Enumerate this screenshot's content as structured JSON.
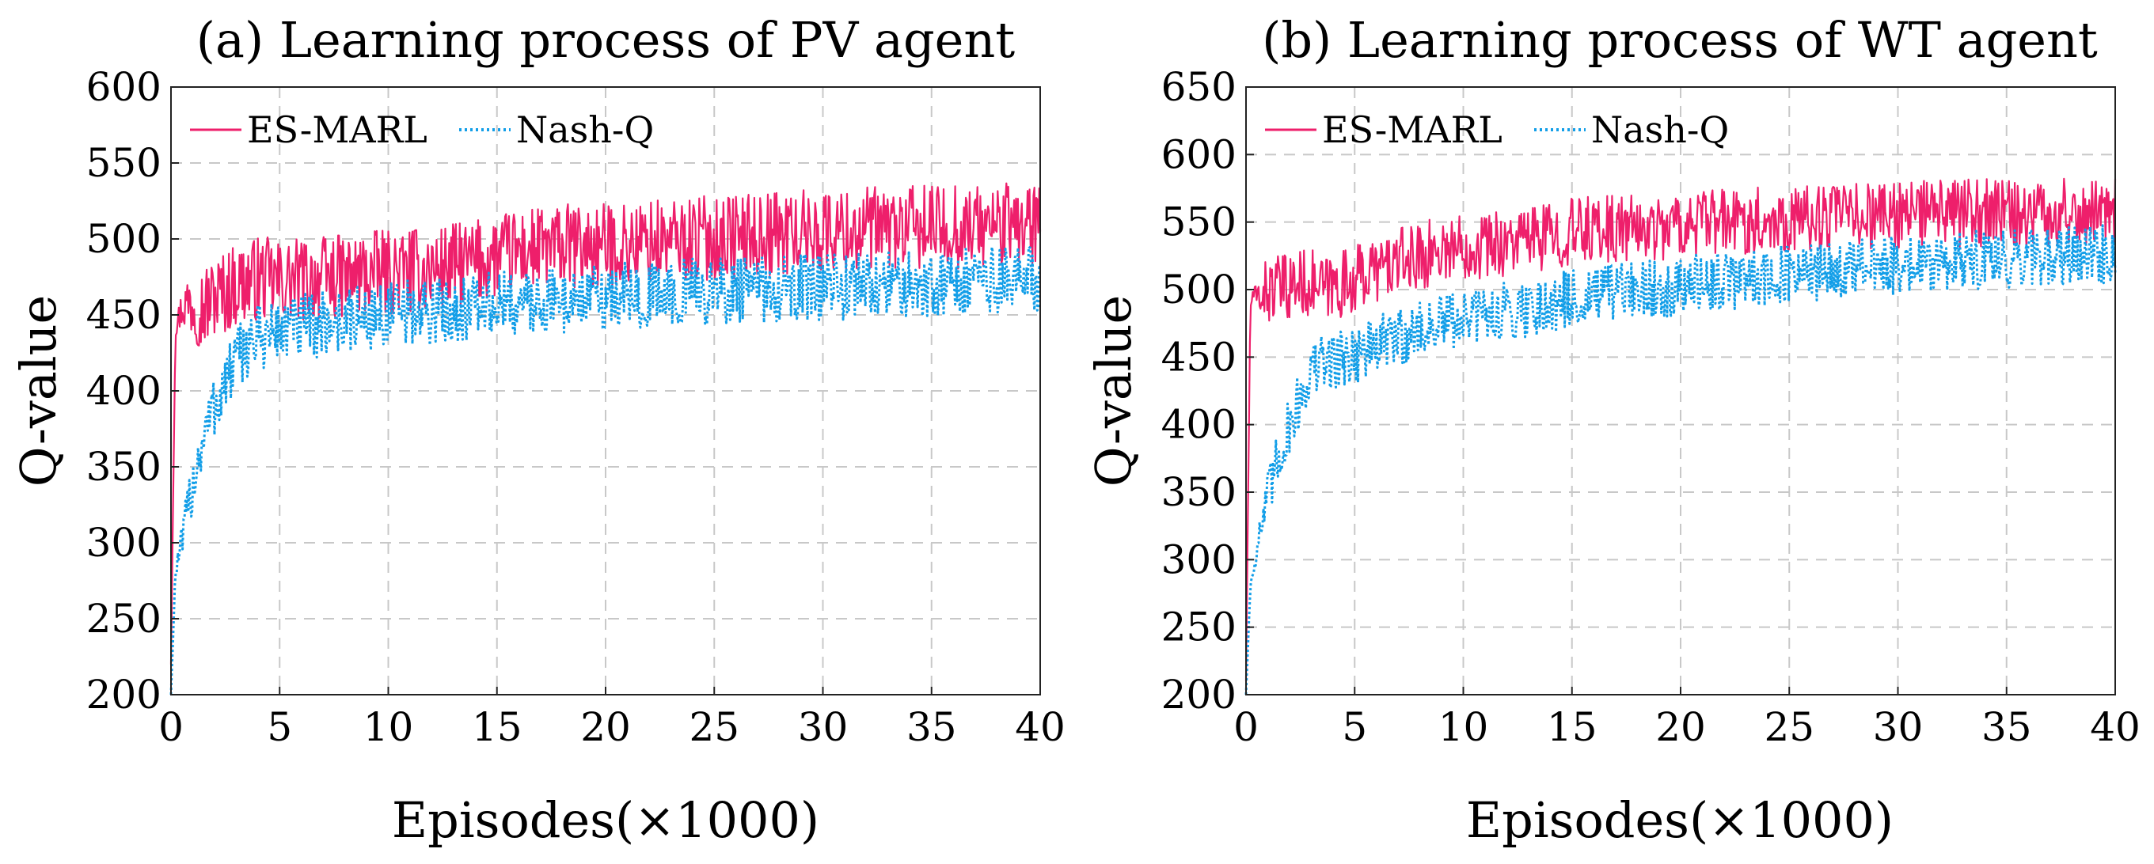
{
  "figure": {
    "panels": [
      {
        "title": "(a) Learning process of PV agent",
        "xlabel": "Episodes(×1000)",
        "ylabel": "Q-value"
      },
      {
        "title": "(b) Learning process of WT agent",
        "xlabel": "Episodes(×1000)",
        "ylabel": "Q-value"
      }
    ],
    "legend": [
      "ES-MARL",
      "Nash-Q"
    ]
  },
  "colors": {
    "es_marl": "#ee1f6b",
    "nash_q": "#129ee8"
  },
  "chart_data": [
    {
      "type": "line",
      "title": "(a) Learning process of PV agent",
      "xlabel": "Episodes(×1000)",
      "ylabel": "Q-value",
      "xlim": [
        0,
        40
      ],
      "ylim": [
        200,
        600
      ],
      "xticks": [
        0,
        5,
        10,
        15,
        20,
        25,
        30,
        35,
        40
      ],
      "yticks": [
        200,
        250,
        300,
        350,
        400,
        450,
        500,
        550,
        600
      ],
      "grid": true,
      "legend_position": "top-left",
      "x": [
        0,
        0.2,
        0.5,
        1,
        1.5,
        2,
        2.5,
        3,
        3.5,
        4,
        5,
        6,
        7,
        8,
        9,
        10,
        12,
        14,
        16,
        18,
        20,
        22,
        24,
        26,
        28,
        30,
        32,
        34,
        36,
        38,
        40
      ],
      "series": [
        {
          "name": "ES-MARL",
          "line": "solid",
          "values": [
            220,
            440,
            455,
            460,
            455,
            462,
            465,
            470,
            472,
            474,
            472,
            473,
            474,
            475,
            477,
            478,
            480,
            485,
            492,
            495,
            495,
            498,
            500,
            502,
            504,
            505,
            506,
            507,
            508,
            509,
            510
          ],
          "noise": 28
        },
        {
          "name": "Nash-Q",
          "line": "dotted",
          "values": [
            200,
            280,
            300,
            340,
            370,
            390,
            405,
            420,
            430,
            435,
            440,
            442,
            444,
            446,
            448,
            450,
            452,
            455,
            458,
            460,
            462,
            463,
            465,
            466,
            467,
            468,
            469,
            470,
            472,
            473,
            475
          ],
          "noise": 22
        }
      ]
    },
    {
      "type": "line",
      "title": "(b) Learning process of WT agent",
      "xlabel": "Episodes(×1000)",
      "ylabel": "Q-value",
      "xlim": [
        0,
        40
      ],
      "ylim": [
        200,
        650
      ],
      "xticks": [
        0,
        5,
        10,
        15,
        20,
        25,
        30,
        35,
        40
      ],
      "yticks": [
        200,
        250,
        300,
        350,
        400,
        450,
        500,
        550,
        600,
        650
      ],
      "grid": true,
      "legend_position": "top-left",
      "x": [
        0,
        0.2,
        0.5,
        1,
        1.5,
        2,
        2.5,
        3,
        3.5,
        4,
        5,
        6,
        7,
        8,
        9,
        10,
        12,
        14,
        16,
        18,
        20,
        22,
        24,
        26,
        28,
        30,
        32,
        34,
        36,
        38,
        40
      ],
      "series": [
        {
          "name": "ES-MARL",
          "line": "solid",
          "values": [
            210,
            490,
            495,
            500,
            500,
            502,
            505,
            505,
            500,
            502,
            508,
            515,
            520,
            525,
            530,
            532,
            535,
            540,
            545,
            545,
            548,
            550,
            552,
            553,
            555,
            556,
            556,
            557,
            557,
            558,
            560
          ],
          "noise": 25
        },
        {
          "name": "Nash-Q",
          "line": "dotted",
          "values": [
            200,
            280,
            310,
            345,
            375,
            400,
            420,
            440,
            445,
            448,
            452,
            458,
            465,
            470,
            475,
            478,
            484,
            490,
            495,
            500,
            503,
            506,
            510,
            512,
            515,
            518,
            520,
            522,
            524,
            525,
            527
          ],
          "noise": 22
        }
      ]
    }
  ]
}
